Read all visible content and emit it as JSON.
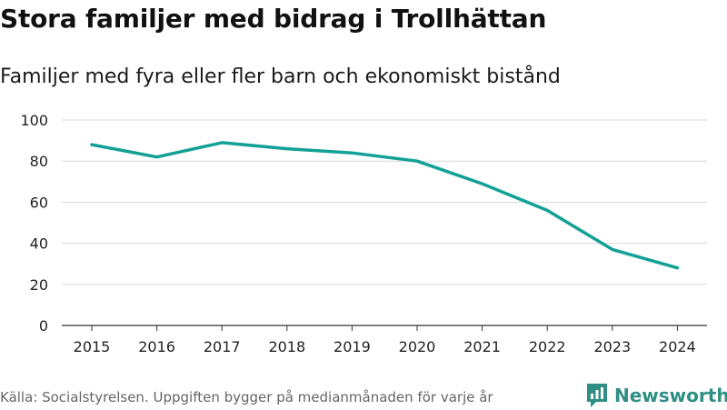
{
  "title": "Stora familjer med bidrag i Trollhättan",
  "subtitle": "Familjer med fyra eller fler barn och ekonomiskt bistånd",
  "source": "Källa: Socialstyrelsen. Uppgiften bygger på medianmånaden för varje år",
  "brand": {
    "name": "Newsworthy",
    "icon": "newsworthy-logo-icon",
    "color": "#2f8f84"
  },
  "chart_data": {
    "type": "line",
    "title": "Stora familjer med bidrag i Trollhättan",
    "subtitle": "Familjer med fyra eller fler barn och ekonomiskt bistånd",
    "xlabel": "",
    "ylabel": "",
    "categories": [
      "2015",
      "2016",
      "2017",
      "2018",
      "2019",
      "2020",
      "2021",
      "2022",
      "2023",
      "2024"
    ],
    "series": [
      {
        "name": "Familjer med fyra eller fler barn och ekonomiskt bistånd",
        "values": [
          88,
          82,
          89,
          86,
          84,
          80,
          69,
          56,
          37,
          28
        ],
        "color": "#13a196"
      }
    ],
    "ylim": [
      0,
      100
    ],
    "yticks": [
      0,
      20,
      40,
      60,
      80,
      100
    ],
    "ytick_labels": [
      "0",
      "20",
      "40",
      "60",
      "80",
      "100"
    ],
    "grid": true,
    "legend": "none"
  }
}
